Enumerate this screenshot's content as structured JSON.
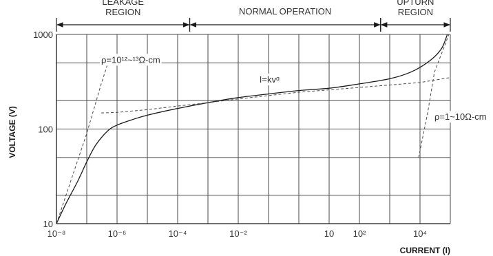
{
  "chart_data": {
    "type": "line",
    "title": "",
    "xlabel": "CURRENT (I)",
    "ylabel": "VOLTAGE (V)",
    "x_scale": "log",
    "y_scale": "log",
    "xlim": [
      1e-08,
      100000.0
    ],
    "ylim": [
      10,
      1000
    ],
    "grid": true,
    "x_ticks": [
      {
        "value": 1e-08,
        "label": "10⁻⁸"
      },
      {
        "value": 1e-06,
        "label": "10⁻⁶"
      },
      {
        "value": 0.0001,
        "label": "10⁻⁴"
      },
      {
        "value": 0.01,
        "label": "10⁻²"
      },
      {
        "value": 10,
        "label": "10"
      },
      {
        "value": 100,
        "label": "10²"
      },
      {
        "value": 10000,
        "label": "10⁴"
      }
    ],
    "y_ticks": [
      {
        "value": 10,
        "label": "10"
      },
      {
        "value": 100,
        "label": "100"
      },
      {
        "value": 1000,
        "label": "1000"
      }
    ],
    "regions": [
      {
        "label_lines": [
          "LEAKAGE",
          "REGION"
        ],
        "x_start": 1e-08,
        "x_end": 0.00025
      },
      {
        "label_lines": [
          "NORMAL OPERATION"
        ],
        "x_start": 0.00025,
        "x_end": 500
      },
      {
        "label_lines": [
          "UPTURN",
          "REGION"
        ],
        "x_start": 500,
        "x_end": 100000
      }
    ],
    "series": [
      {
        "style": "solid",
        "points": [
          [
            1e-08,
            10
          ],
          [
            2e-08,
            16
          ],
          [
            5e-08,
            28
          ],
          [
            1e-07,
            45
          ],
          [
            2e-07,
            68
          ],
          [
            5e-07,
            96
          ],
          [
            1e-06,
            110
          ],
          [
            3e-06,
            125
          ],
          [
            1e-05,
            140
          ],
          [
            0.0001,
            165
          ],
          [
            0.001,
            190
          ],
          [
            0.01,
            215
          ],
          [
            0.1,
            235
          ],
          [
            1,
            255
          ],
          [
            10,
            270
          ],
          [
            100,
            300
          ],
          [
            1000,
            340
          ],
          [
            5000,
            400
          ],
          [
            20000,
            520
          ],
          [
            50000,
            700
          ],
          [
            80000,
            1000
          ]
        ]
      },
      {
        "style": "dashed",
        "points": [
          [
            1e-08,
            10
          ],
          [
            1e-07,
            90
          ],
          [
            3e-07,
            300
          ],
          [
            5e-07,
            500
          ]
        ]
      },
      {
        "style": "dashed",
        "points": [
          [
            3e-07,
            148
          ],
          [
            1e-06,
            150
          ],
          [
            1e-05,
            160
          ],
          [
            0.0001,
            175
          ],
          [
            0.001,
            190
          ],
          [
            0.01,
            208
          ],
          [
            1,
            245
          ],
          [
            100,
            275
          ],
          [
            10000,
            310
          ],
          [
            100000,
            350
          ]
        ]
      },
      {
        "style": "dashed",
        "points": [
          [
            9000,
            50
          ],
          [
            18000,
            150
          ],
          [
            30000,
            400
          ],
          [
            90000,
            1000
          ]
        ]
      }
    ],
    "annotations": [
      {
        "text": "ρ=10¹²~¹³Ω-cm",
        "x": 3e-07,
        "y": 500
      },
      {
        "text": "I=kvᵅ",
        "x": 0.05,
        "y": 310
      },
      {
        "text": "ρ=1~10Ω-cm",
        "x": 30000,
        "y": 125
      }
    ]
  }
}
